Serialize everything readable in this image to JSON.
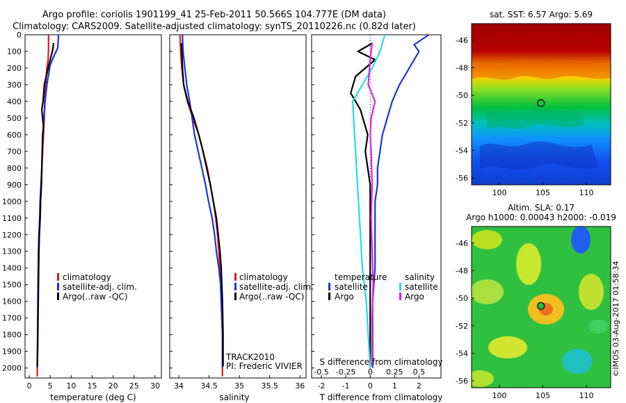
{
  "title_line1": "Argo profile: coriolis 1901199_41 25-Feb-2011 50.566S 104.777E (DM data)",
  "title_line2": "Climatology: CARS2009. Satellite-adjusted climatology: synTS_20110226.nc (0.82d later)",
  "stamp": "©IMOS 03-Aug-2017 01:58:34",
  "colors": {
    "climatology": "#e41a1c",
    "satellite": "#1f30e0",
    "argo": "#000000",
    "sal_satellite": "#22e0e0",
    "sal_argo": "#e020e0"
  },
  "chart_data": [
    {
      "type": "line",
      "panel": "temperature",
      "xlabel": "temperature (deg C)",
      "xticks": [
        0,
        5,
        10,
        15,
        20,
        25,
        30
      ],
      "xlim": [
        -1,
        31.5
      ],
      "ylim": [
        2060,
        0
      ],
      "yticks": [
        0,
        100,
        200,
        300,
        400,
        500,
        600,
        700,
        800,
        900,
        1000,
        1100,
        1200,
        1300,
        1400,
        1500,
        1600,
        1700,
        1800,
        1900,
        2000
      ],
      "legend": [
        "climatology",
        "satellite-adj. clim.",
        "Argo(..raw -QC)"
      ],
      "series": [
        {
          "key": "climatology",
          "x": [
            4.6,
            4.6,
            4.5,
            4.2,
            3.9,
            3.7,
            3.6,
            3.4,
            3.2,
            3.0,
            2.9,
            2.7,
            2.6,
            2.4,
            2.3,
            2.1,
            2.0,
            1.9
          ],
          "y": [
            0,
            80,
            150,
            200,
            300,
            400,
            500,
            600,
            700,
            800,
            900,
            1000,
            1100,
            1200,
            1300,
            1500,
            1800,
            2050
          ]
        },
        {
          "key": "satellite",
          "x": [
            7.0,
            6.8,
            6.2,
            5.0,
            4.2,
            3.8,
            3.5,
            3.3,
            3.1,
            3.0,
            2.8,
            2.6,
            2.5,
            2.3,
            2.2,
            2.1,
            2.0,
            1.9
          ],
          "y": [
            0,
            80,
            110,
            180,
            300,
            400,
            500,
            600,
            700,
            800,
            900,
            1000,
            1100,
            1200,
            1300,
            1500,
            1800,
            2000
          ]
        },
        {
          "key": "argo",
          "x": [
            5.8,
            5.6,
            5.2,
            4.5,
            3.6,
            3.3,
            3.0,
            3.4,
            3.2,
            3.1,
            3.0,
            2.9,
            2.7,
            2.6,
            2.4,
            2.3,
            2.2,
            2.1,
            2.0,
            1.9
          ],
          "y": [
            50,
            90,
            130,
            200,
            300,
            400,
            450,
            550,
            600,
            700,
            800,
            900,
            1000,
            1100,
            1200,
            1300,
            1500,
            1700,
            1900,
            1990
          ]
        }
      ]
    },
    {
      "type": "line",
      "panel": "salinity",
      "xlabel": "salinity",
      "xticks": [
        34,
        34.5,
        35,
        35.5,
        36
      ],
      "xlim": [
        33.85,
        36.1
      ],
      "ylim": [
        2060,
        0
      ],
      "legend": [
        "climatology",
        "satellite-adj. clim.",
        "Argo(..raw -QC)"
      ],
      "annotation": [
        "TRACK2010",
        "PI: Frederic VIVIER"
      ],
      "series": [
        {
          "key": "climatology",
          "x": [
            34.02,
            34.03,
            34.05,
            34.08,
            34.14,
            34.23,
            34.33,
            34.4,
            34.47,
            34.52,
            34.57,
            34.61,
            34.64,
            34.66,
            34.68,
            34.69,
            34.7,
            34.72,
            34.72
          ],
          "y": [
            0,
            100,
            200,
            300,
            400,
            500,
            600,
            700,
            800,
            900,
            1000,
            1100,
            1200,
            1300,
            1400,
            1500,
            1600,
            1800,
            2050
          ]
        },
        {
          "key": "satellite",
          "x": [
            34.06,
            34.07,
            34.1,
            34.13,
            34.18,
            34.22,
            34.26,
            34.32,
            34.38,
            34.44,
            34.49,
            34.55,
            34.59,
            34.62,
            34.66,
            34.69,
            34.7,
            34.72,
            34.72
          ],
          "y": [
            0,
            100,
            200,
            300,
            400,
            500,
            600,
            700,
            800,
            900,
            1000,
            1100,
            1200,
            1300,
            1400,
            1500,
            1600,
            1800,
            2000
          ]
        },
        {
          "key": "argo",
          "x": [
            34.04,
            34.05,
            34.06,
            34.08,
            34.15,
            34.25,
            34.33,
            34.4,
            34.46,
            34.52,
            34.57,
            34.62,
            34.65,
            34.68,
            34.7,
            34.71,
            34.72,
            34.73,
            34.73
          ],
          "y": [
            50,
            100,
            200,
            300,
            400,
            500,
            600,
            700,
            800,
            900,
            1000,
            1100,
            1200,
            1300,
            1400,
            1500,
            1600,
            1800,
            1990
          ]
        }
      ]
    },
    {
      "type": "line",
      "panel": "difference",
      "xlabel": "T difference from climatology",
      "xticks": [
        -2,
        -1,
        0,
        1,
        2
      ],
      "top_xlabel": "S difference from climatology",
      "top_xticks": [
        "-0.5",
        "-0.25",
        "0",
        "0.25",
        "0.5"
      ],
      "xlim": [
        -2.4,
        2.9
      ],
      "ylim": [
        2060,
        0
      ],
      "legend_headers": [
        "temperature",
        "salinity"
      ],
      "legend": [
        "satellite",
        "Argo",
        "satellite",
        "Argo"
      ],
      "series": [
        {
          "key": "t_satellite",
          "x": [
            2.4,
            1.8,
            2.0,
            1.8,
            1.6,
            1.4,
            1.2,
            0.9,
            0.7,
            0.5,
            0.4,
            0.3,
            0.3,
            0.2,
            0.2,
            0.2,
            0.1,
            0.1,
            0.1
          ],
          "y": [
            0,
            60,
            100,
            150,
            200,
            250,
            300,
            400,
            500,
            600,
            700,
            800,
            900,
            1000,
            1200,
            1400,
            1600,
            1800,
            2000
          ]
        },
        {
          "key": "t_argo",
          "x": [
            0.1,
            -0.5,
            0.2,
            -0.6,
            -0.8,
            -0.4,
            -0.3,
            -0.2,
            -0.1,
            -0.2,
            -0.1,
            0.0,
            0.0,
            0.0,
            0.0,
            0.0,
            0.0,
            0.0
          ],
          "y": [
            50,
            100,
            150,
            250,
            350,
            450,
            500,
            550,
            600,
            700,
            800,
            900,
            1000,
            1200,
            1400,
            1600,
            1800,
            1990
          ]
        },
        {
          "key": "s_satellite",
          "x": [
            0.15,
            0.1,
            0.02,
            -0.08,
            -0.18,
            -0.16,
            -0.14,
            -0.12,
            -0.1,
            -0.08,
            -0.06,
            -0.04,
            -0.02,
            0.0
          ],
          "y": [
            0,
            100,
            200,
            300,
            400,
            600,
            800,
            1000,
            1200,
            1400,
            1500,
            1600,
            1800,
            2000
          ]
        },
        {
          "key": "s_argo",
          "x": [
            0.02,
            0.0,
            -0.02,
            0.05,
            0.01,
            0.0,
            0.01,
            0.02,
            0.01,
            0.02,
            0.03,
            0.02,
            0.02,
            0.02
          ],
          "y": [
            50,
            150,
            300,
            400,
            500,
            600,
            700,
            900,
            1100,
            1300,
            1500,
            1700,
            1850,
            1990
          ]
        }
      ]
    },
    {
      "type": "heatmap",
      "panel": "sst_map",
      "title": "sat. SST: 6.57 Argo: 5.69",
      "xticks": [
        100,
        105,
        110
      ],
      "yticks": [
        -46,
        -48,
        -50,
        -52,
        -54,
        -56
      ],
      "xlim": [
        96.8,
        112.8
      ],
      "ylim": [
        -56.5,
        -44.8
      ],
      "marker": {
        "lon": 104.777,
        "lat": -50.566
      }
    },
    {
      "type": "heatmap",
      "panel": "sla_map",
      "title_line1": "Altim. SLA: 0.17",
      "title_line2": "Argo h1000: 0.00043 h2000: -0.019",
      "xticks": [
        100,
        105,
        110
      ],
      "yticks": [
        -46,
        -48,
        -50,
        -52,
        -54,
        -56
      ],
      "xlim": [
        96.8,
        112.8
      ],
      "ylim": [
        -56.5,
        -44.8
      ],
      "marker": {
        "lon": 104.777,
        "lat": -50.566
      }
    }
  ]
}
